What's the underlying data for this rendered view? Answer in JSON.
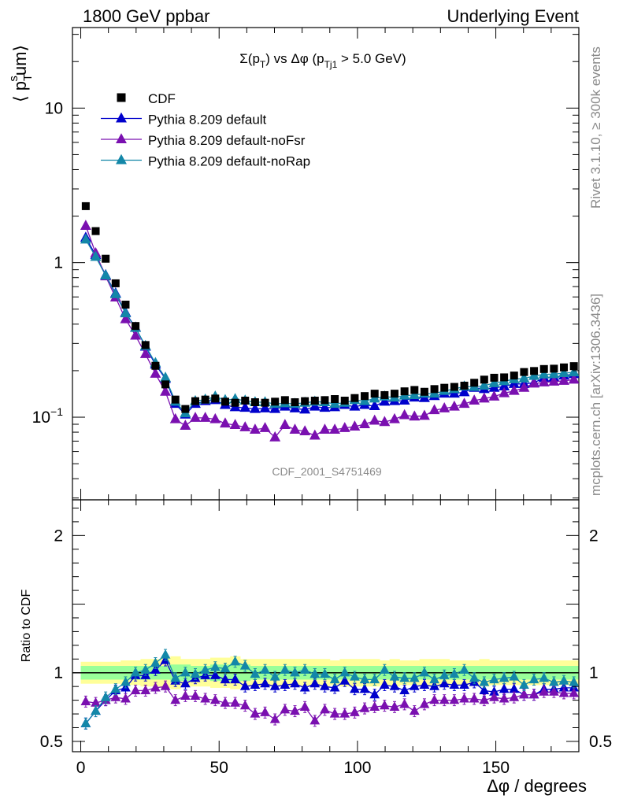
{
  "header": {
    "left": "1800 GeV ppbar",
    "right": "Underlying Event"
  },
  "side": {
    "rivet": "Rivet 3.1.10, ≥ 300k events",
    "mcplots": "mcplots.cern.ch [arXiv:1306.3436]"
  },
  "watermark": "CDF_2001_S4751469",
  "chart_data": {
    "type": "scatter",
    "title_parts": [
      "Σ(p",
      "T",
      ") vs Δφ (p",
      "Tj1",
      " > 5.0 GeV)"
    ],
    "ylabel_parts": [
      "⟨ p",
      "T",
      "s",
      "um⟩"
    ],
    "ratio_ylabel": "Ratio to CDF",
    "xlabel": "Δφ / degrees",
    "xlim": [
      -3,
      180
    ],
    "ylim": [
      0.0292,
      33.2
    ],
    "ratio_ylim": [
      0.425,
      2.26
    ],
    "yscale": "log",
    "x_ticks": [
      0,
      50,
      100,
      150
    ],
    "y_ticks": [
      {
        "value": 0.1,
        "base": "10",
        "exp": "−1"
      },
      {
        "value": 1,
        "label": "1"
      },
      {
        "value": 10,
        "label": "10"
      }
    ],
    "ratio_ticks": [
      0.5,
      1,
      2
    ],
    "x": [
      1.8,
      5.4,
      9.0,
      12.6,
      16.2,
      19.8,
      23.4,
      27.0,
      30.6,
      34.2,
      37.8,
      41.4,
      45.0,
      48.6,
      52.2,
      55.8,
      59.4,
      63.0,
      66.6,
      70.2,
      73.8,
      77.4,
      81.0,
      84.6,
      88.2,
      91.8,
      95.4,
      99.0,
      102.6,
      106.2,
      109.8,
      113.4,
      117.0,
      120.6,
      124.2,
      127.8,
      131.4,
      135.0,
      138.6,
      142.2,
      145.8,
      149.4,
      153.0,
      156.6,
      160.2,
      163.8,
      167.4,
      171.0,
      174.6,
      178.2
    ],
    "series": [
      {
        "name": "CDF",
        "color": "#000000",
        "marker": "square",
        "values": [
          2.32,
          1.6,
          1.06,
          0.735,
          0.535,
          0.389,
          0.293,
          0.215,
          0.163,
          0.13,
          0.113,
          0.127,
          0.13,
          0.132,
          0.126,
          0.124,
          0.128,
          0.125,
          0.124,
          0.126,
          0.129,
          0.125,
          0.127,
          0.128,
          0.129,
          0.131,
          0.128,
          0.133,
          0.137,
          0.142,
          0.139,
          0.142,
          0.147,
          0.15,
          0.146,
          0.152,
          0.155,
          0.157,
          0.16,
          0.167,
          0.175,
          0.18,
          0.181,
          0.186,
          0.196,
          0.199,
          0.205,
          0.206,
          0.21,
          0.214
        ]
      },
      {
        "name": "Pythia 8.209 default",
        "color": "#0000cc",
        "marker": "triangle",
        "values": [
          1.45,
          1.12,
          0.83,
          0.633,
          0.475,
          0.38,
          0.286,
          0.219,
          0.177,
          0.122,
          0.104,
          0.122,
          0.127,
          0.129,
          0.12,
          0.116,
          0.115,
          0.113,
          0.114,
          0.113,
          0.117,
          0.114,
          0.112,
          0.117,
          0.115,
          0.116,
          0.12,
          0.117,
          0.12,
          0.118,
          0.126,
          0.127,
          0.128,
          0.134,
          0.133,
          0.137,
          0.142,
          0.142,
          0.145,
          0.155,
          0.152,
          0.155,
          0.158,
          0.164,
          0.164,
          0.167,
          0.18,
          0.181,
          0.186,
          0.19
        ]
      },
      {
        "name": "Pythia 8.209 default-noFsr",
        "color": "#7a10b0",
        "marker": "triangle",
        "values": [
          1.73,
          1.15,
          0.815,
          0.595,
          0.43,
          0.337,
          0.256,
          0.191,
          0.146,
          0.097,
          0.088,
          0.099,
          0.099,
          0.097,
          0.091,
          0.089,
          0.086,
          0.083,
          0.085,
          0.074,
          0.089,
          0.083,
          0.081,
          0.076,
          0.083,
          0.083,
          0.085,
          0.087,
          0.09,
          0.095,
          0.093,
          0.097,
          0.103,
          0.101,
          0.102,
          0.111,
          0.114,
          0.117,
          0.122,
          0.128,
          0.132,
          0.136,
          0.143,
          0.148,
          0.155,
          0.165,
          0.168,
          0.17,
          0.172,
          0.175
        ]
      },
      {
        "name": "Pythia 8.209 default-noRap",
        "color": "#1387a8",
        "marker": "triangle",
        "values": [
          1.41,
          1.09,
          0.826,
          0.625,
          0.47,
          0.378,
          0.289,
          0.224,
          0.18,
          0.126,
          0.106,
          0.127,
          0.13,
          0.136,
          0.129,
          0.131,
          0.128,
          0.125,
          0.125,
          0.122,
          0.123,
          0.122,
          0.124,
          0.126,
          0.125,
          0.122,
          0.124,
          0.129,
          0.127,
          0.132,
          0.136,
          0.134,
          0.138,
          0.139,
          0.142,
          0.142,
          0.148,
          0.152,
          0.158,
          0.157,
          0.16,
          0.166,
          0.171,
          0.176,
          0.178,
          0.185,
          0.189,
          0.19,
          0.193,
          0.195
        ]
      }
    ],
    "ratio": {
      "reference_line": 1,
      "band_colors": [
        "#ffff99",
        "#99ff99"
      ],
      "band_inner": [
        0.05,
        0.05,
        0.05,
        0.05,
        0.05,
        0.05,
        0.05,
        0.05,
        0.05,
        0.06,
        0.06,
        0.05,
        0.05,
        0.06,
        0.06,
        0.07,
        0.06,
        0.05,
        0.05,
        0.05,
        0.05,
        0.05,
        0.05,
        0.05,
        0.05,
        0.05,
        0.05,
        0.05,
        0.05,
        0.05,
        0.05,
        0.05,
        0.05,
        0.05,
        0.05,
        0.05,
        0.05,
        0.05,
        0.05,
        0.05,
        0.05,
        0.05,
        0.05,
        0.05,
        0.05,
        0.05,
        0.05,
        0.05,
        0.05,
        0.05
      ],
      "band_outer": [
        0.08,
        0.08,
        0.08,
        0.08,
        0.09,
        0.09,
        0.1,
        0.1,
        0.11,
        0.12,
        0.1,
        0.1,
        0.1,
        0.11,
        0.11,
        0.12,
        0.1,
        0.1,
        0.1,
        0.1,
        0.1,
        0.1,
        0.1,
        0.1,
        0.1,
        0.09,
        0.1,
        0.1,
        0.1,
        0.1,
        0.09,
        0.1,
        0.09,
        0.09,
        0.1,
        0.1,
        0.1,
        0.09,
        0.09,
        0.09,
        0.1,
        0.09,
        0.09,
        0.09,
        0.09,
        0.09,
        0.09,
        0.09,
        0.09,
        0.09
      ],
      "series": [
        {
          "name": "Pythia 8.209 default",
          "color": "#0000cc",
          "values": [
            0.63,
            0.72,
            0.8,
            0.87,
            0.89,
            0.98,
            0.98,
            1.02,
            1.09,
            0.94,
            0.92,
            0.96,
            0.98,
            0.98,
            0.95,
            0.95,
            0.9,
            0.91,
            0.92,
            0.9,
            0.91,
            0.92,
            0.89,
            0.92,
            0.9,
            0.89,
            0.94,
            0.88,
            0.88,
            0.84,
            0.91,
            0.9,
            0.87,
            0.9,
            0.91,
            0.9,
            0.92,
            0.91,
            0.91,
            0.93,
            0.87,
            0.86,
            0.88,
            0.88,
            0.84,
            0.84,
            0.88,
            0.88,
            0.89,
            0.89
          ]
        },
        {
          "name": "Pythia 8.209 default-noFsr",
          "color": "#7a10b0",
          "values": [
            0.79,
            0.78,
            0.8,
            0.82,
            0.81,
            0.87,
            0.87,
            0.89,
            0.9,
            0.8,
            0.83,
            0.83,
            0.81,
            0.8,
            0.78,
            0.78,
            0.76,
            0.7,
            0.71,
            0.66,
            0.73,
            0.72,
            0.75,
            0.65,
            0.73,
            0.7,
            0.7,
            0.71,
            0.74,
            0.75,
            0.76,
            0.75,
            0.77,
            0.72,
            0.77,
            0.8,
            0.8,
            0.8,
            0.81,
            0.81,
            0.8,
            0.82,
            0.81,
            0.82,
            0.84,
            0.84,
            0.86,
            0.86,
            0.85,
            0.85
          ]
        },
        {
          "name": "Pythia 8.209 default-noRap",
          "color": "#1387a8",
          "values": [
            0.63,
            0.72,
            0.82,
            0.88,
            0.93,
            1.0,
            1.02,
            1.07,
            1.13,
            0.96,
            1.0,
            0.99,
            1.02,
            1.04,
            1.03,
            1.08,
            1.05,
            0.99,
            1.02,
            0.97,
            1.02,
            1.0,
            1.02,
            0.99,
            0.99,
            0.95,
            1.0,
            0.97,
            0.95,
            0.95,
            1.02,
            0.97,
            0.96,
            0.96,
            1.0,
            0.95,
            0.98,
            0.99,
            1.02,
            0.96,
            0.93,
            0.95,
            0.96,
            0.97,
            0.91,
            0.95,
            0.96,
            0.93,
            0.94,
            0.93
          ]
        }
      ]
    }
  }
}
